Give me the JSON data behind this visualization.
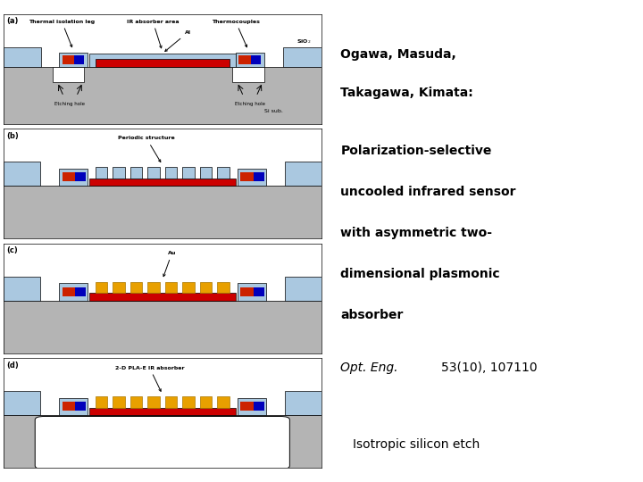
{
  "bg_color": "#ffffff",
  "gray": "#b4b4b4",
  "light_blue": "#aac8e0",
  "red": "#cc0000",
  "gold": "#e8a000",
  "dark_blue": "#000088",
  "sio2_label_color": "#000000",
  "panel_border": "#000000",
  "text_color": "#000000",
  "author": "Ogawa, Masuda,\nTakagawa, Kimata:",
  "title_lines": [
    "Polarization-selective",
    "uncooled infrared sensor",
    "with asymmetric two-",
    "dimensional plasmonic",
    "absorber"
  ],
  "journal_italic": "Opt. Eng.",
  "journal_rest": " 53(10), 107110",
  "note": "Isotropic silicon etch"
}
